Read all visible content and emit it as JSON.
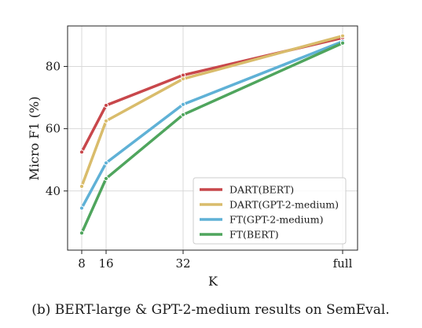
{
  "chart_data": {
    "type": "line",
    "x": [
      "8",
      "16",
      "32",
      "full"
    ],
    "xlabel": "K",
    "ylabel": "Micro F1 (%)",
    "ylim": [
      21,
      93
    ],
    "yticks": [
      40,
      60,
      80
    ],
    "grid": true,
    "legend_position": "lower-right",
    "series": [
      {
        "name": "DART(BERT)",
        "color": "#c8474b",
        "values": [
          52.5,
          67.5,
          77.2,
          89.2
        ]
      },
      {
        "name": "DART(GPT-2-medium)",
        "color": "#d9bc6b",
        "values": [
          41.5,
          62.5,
          76.0,
          89.8
        ]
      },
      {
        "name": "FT(GPT-2-medium)",
        "color": "#5fb1d6",
        "values": [
          34.5,
          49.0,
          67.8,
          88.0
        ]
      },
      {
        "name": "FT(BERT)",
        "color": "#4fa55d",
        "values": [
          26.5,
          44.0,
          64.5,
          87.5
        ]
      }
    ]
  },
  "caption": "(b) BERT-large & GPT-2-medium results on SemEval."
}
